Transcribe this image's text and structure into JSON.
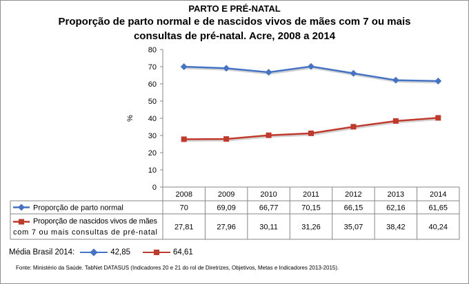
{
  "header": {
    "section": "PARTO E PRÉ-NATAL",
    "title_line1": "Proporção de parto normal e de nascidos vivos de mães com 7 ou mais",
    "title_line2": "consultas de pré-natal. Acre, 2008 a 2014"
  },
  "chart_data": {
    "type": "line",
    "title": "Proporção de parto normal e de nascidos vivos de mães com 7 ou mais consultas de pré-natal. Acre, 2008 a 2014",
    "ylabel": "%",
    "xlabel": "",
    "ylim": [
      0,
      80
    ],
    "yticks": [
      0,
      10,
      20,
      30,
      40,
      50,
      60,
      70,
      80
    ],
    "categories": [
      "2008",
      "2009",
      "2010",
      "2011",
      "2012",
      "2013",
      "2014"
    ],
    "grid": false,
    "legend": "data-table",
    "series": [
      {
        "name": "Proporção de parto normal",
        "name_line1": "Proporção de parto normal",
        "name_line2": "",
        "marker": "diamond",
        "color": "#4472c4",
        "values": [
          70,
          69.09,
          66.77,
          70.15,
          66.15,
          62.16,
          61.65
        ],
        "labels": [
          "70",
          "69,09",
          "66,77",
          "70,15",
          "66,15",
          "62,16",
          "61,65"
        ]
      },
      {
        "name": "Proporção de nascidos vivos de mães com 7 ou mais consultas de pré-natal",
        "name_line1": "Proporção de nascidos vivos de mães",
        "name_line2": "com 7 ou mais consultas de pré-natal",
        "marker": "square",
        "color": "#c0392b",
        "values": [
          27.81,
          27.96,
          30.11,
          31.26,
          35.07,
          38.42,
          40.24
        ],
        "labels": [
          "27,81",
          "27,96",
          "30,11",
          "31,26",
          "35,07",
          "38,42",
          "40,24"
        ]
      }
    ]
  },
  "footer": {
    "brasil_label": "Média Brasil 2014:",
    "brasil_values": [
      "42,85",
      "64,61"
    ],
    "source": "Fonte: Ministério da Saúde. TabNet DATASUS (Indicadores 20 e 21 do rol de Diretrizes, Objetivos, Metas e Indicadores 2013-2015)."
  },
  "colors": {
    "series1": "#4472c4",
    "series2": "#c0392b",
    "axis": "#868686"
  }
}
